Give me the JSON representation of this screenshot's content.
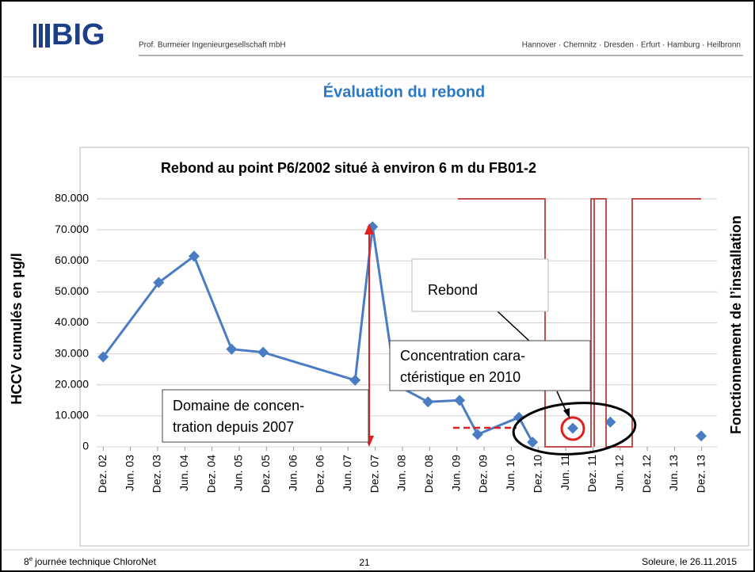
{
  "header": {
    "logo": "BIG",
    "company": "Prof. Burmeier Ingenieurgesellschaft mbH",
    "cities": "Hannover · Chemnitz · Dresden · Erfurt · Hamburg · Heilbronn"
  },
  "slide_title": "Évaluation du rebond",
  "chart_data": {
    "type": "line",
    "title": "Rebond au point P6/2002 situé à environ 6 m du FB01-2",
    "y_label": "HCCV cumulés en µg/l",
    "y2_label": "Fonctionnement de l’installation",
    "xlim": [
      2002.8,
      2014.2
    ],
    "xticks": [
      {
        "value": 2002.92,
        "label": "Dez. 02"
      },
      {
        "value": 2003.42,
        "label": "Jun. 03"
      },
      {
        "value": 2003.92,
        "label": "Dez. 03"
      },
      {
        "value": 2004.42,
        "label": "Jun. 04"
      },
      {
        "value": 2004.92,
        "label": "Dez. 04"
      },
      {
        "value": 2005.42,
        "label": "Jun. 05"
      },
      {
        "value": 2005.92,
        "label": "Dez. 05"
      },
      {
        "value": 2006.42,
        "label": "Jun. 06"
      },
      {
        "value": 2006.92,
        "label": "Dez. 06"
      },
      {
        "value": 2007.42,
        "label": "Jun. 07"
      },
      {
        "value": 2007.92,
        "label": "Dez. 07"
      },
      {
        "value": 2008.42,
        "label": "Jun. 08"
      },
      {
        "value": 2008.92,
        "label": "Dez. 08"
      },
      {
        "value": 2009.42,
        "label": "Jun. 09"
      },
      {
        "value": 2009.92,
        "label": "Dez. 09"
      },
      {
        "value": 2010.42,
        "label": "Jun. 10"
      },
      {
        "value": 2010.92,
        "label": "Dez. 10"
      },
      {
        "value": 2011.42,
        "label": "Jun. 11"
      },
      {
        "value": 2011.92,
        "label": "Dez. 11"
      },
      {
        "value": 2012.42,
        "label": "Jun. 12"
      },
      {
        "value": 2012.92,
        "label": "Dez. 12"
      },
      {
        "value": 2013.42,
        "label": "Jun. 13"
      },
      {
        "value": 2013.92,
        "label": "Dez. 13"
      }
    ],
    "ylim": [
      0,
      80000
    ],
    "yticks": [
      0,
      {
        "value": 10000,
        "label": "10.000"
      },
      {
        "value": 20000,
        "label": "20.000"
      },
      {
        "value": 30000,
        "label": "30.000"
      },
      {
        "value": 40000,
        "label": "40.000"
      },
      {
        "value": 50000,
        "label": "50.000"
      },
      {
        "value": 60000,
        "label": "60.000"
      },
      {
        "value": 70000,
        "label": "70.000"
      },
      {
        "value": 80000,
        "label": "80.000"
      }
    ],
    "grid": true,
    "series": [
      {
        "color": "#4a7cc4",
        "line": true,
        "x": [
          2002.92,
          2003.94,
          2004.59,
          2005.28,
          2005.86,
          2007.55,
          2007.87,
          2008.3,
          2008.89,
          2009.47,
          2009.8,
          2010.56,
          2010.81
        ],
        "values": [
          29000,
          53000,
          61500,
          31500,
          30500,
          21500,
          71000,
          20000,
          14500,
          15000,
          4000,
          9500,
          1500
        ]
      },
      {
        "color": "#4a7cc4",
        "line": false,
        "x": [
          2011.55,
          2012.24,
          2013.91
        ],
        "values": [
          6000,
          8000,
          3500
        ]
      }
    ],
    "annotations": {
      "rebound": "Rebond",
      "concentration": [
        "Concentration cara-",
        "ctéristique en 2010"
      ],
      "domain": [
        "Domaine de concen-",
        "tration depuis 2007"
      ]
    }
  },
  "footer": {
    "num": "8",
    "sup": "e",
    "text": "journée technique ChloroNet",
    "page": "21",
    "place_date": "Soleure, le 26.11.2015"
  }
}
